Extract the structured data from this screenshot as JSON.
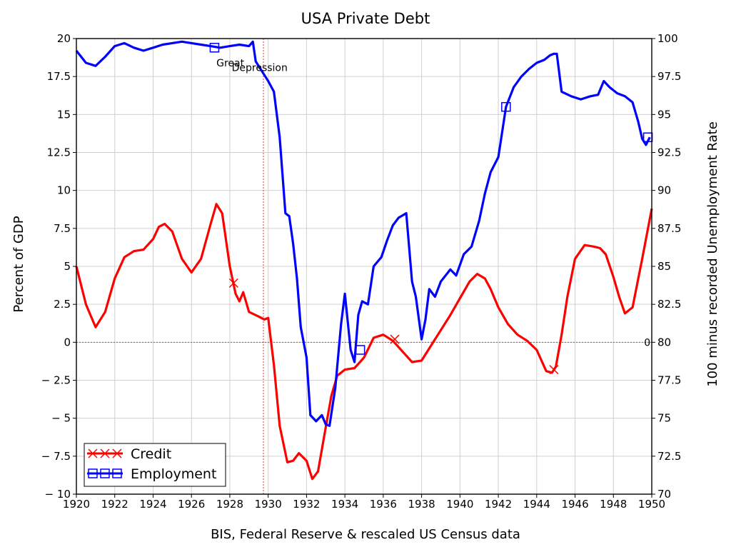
{
  "chart_data": {
    "type": "line",
    "title": "USA Private Debt",
    "xlabel": "BIS, Federal Reserve & rescaled US Census data",
    "ylabel_left": "Percent of GDP",
    "ylabel_right": "100 minus recorded Unemployment Rate",
    "xlim": [
      1920,
      1950
    ],
    "ylim_left": [
      -10,
      20
    ],
    "ylim_right": [
      70,
      100
    ],
    "x_ticks": [
      "1920",
      "1922",
      "1924",
      "1926",
      "1928",
      "1930",
      "1932",
      "1934",
      "1936",
      "1938",
      "1940",
      "1942",
      "1944",
      "1946",
      "1948",
      "1950"
    ],
    "y_left_ticks": [
      "20",
      "17.5",
      "15",
      "12.5",
      "10",
      "7.5",
      "5",
      "2.5",
      "0",
      "− 2.5",
      "− 5",
      "− 7.5",
      "− 10"
    ],
    "y_right_ticks": [
      "100",
      "97.5",
      "95",
      "92.5",
      "90",
      "87.5",
      "85",
      "82.5",
      "80",
      "77.5",
      "75",
      "72.5",
      "70"
    ],
    "grid": true,
    "legend_position": "bottom-left",
    "vline_x": 1929.75,
    "hline_y": 0,
    "annotations": [
      {
        "text": "Great",
        "x": 1927.3,
        "y": 98.4
      },
      {
        "text": "Depression",
        "x": 1928.1,
        "y": 98.1
      },
      {
        "text": "0",
        "x": 1949.6,
        "y": 80
      }
    ],
    "series": [
      {
        "name": "Credit",
        "color": "#ff0000",
        "axis": "left",
        "marker": "x",
        "x": [
          1920.0,
          1920.5,
          1921.0,
          1921.5,
          1922.0,
          1922.5,
          1923.0,
          1923.5,
          1924.0,
          1924.3,
          1924.6,
          1925.0,
          1925.5,
          1926.0,
          1926.5,
          1927.0,
          1927.3,
          1927.6,
          1928.0,
          1928.3,
          1928.5,
          1928.7,
          1929.0,
          1929.5,
          1929.8,
          1930.0,
          1930.3,
          1930.6,
          1931.0,
          1931.3,
          1931.6,
          1932.0,
          1932.3,
          1932.6,
          1933.0,
          1933.3,
          1933.6,
          1934.0,
          1934.5,
          1935.0,
          1935.5,
          1936.0,
          1936.5,
          1937.0,
          1937.5,
          1938.0,
          1938.5,
          1939.0,
          1939.5,
          1940.0,
          1940.5,
          1940.9,
          1941.3,
          1941.6,
          1942.0,
          1942.5,
          1943.0,
          1943.5,
          1944.0,
          1944.5,
          1944.8,
          1945.0,
          1945.3,
          1945.6,
          1946.0,
          1946.5,
          1947.0,
          1947.3,
          1947.6,
          1948.0,
          1948.3,
          1948.6,
          1949.0,
          1949.5,
          1950.0
        ],
        "y": [
          5.0,
          2.5,
          1.0,
          2.0,
          4.2,
          5.6,
          6.0,
          6.1,
          6.8,
          7.6,
          7.8,
          7.3,
          5.5,
          4.6,
          5.5,
          7.8,
          9.1,
          8.5,
          5.0,
          3.2,
          2.7,
          3.3,
          2.0,
          1.7,
          1.5,
          1.6,
          -1.5,
          -5.5,
          -7.9,
          -7.8,
          -7.3,
          -7.8,
          -9.0,
          -8.5,
          -5.6,
          -3.5,
          -2.2,
          -1.8,
          -1.7,
          -1.0,
          0.3,
          0.5,
          0.1,
          -0.6,
          -1.3,
          -1.2,
          -0.2,
          0.8,
          1.8,
          2.9,
          4.0,
          4.5,
          4.2,
          3.5,
          2.3,
          1.2,
          0.5,
          0.1,
          -0.5,
          -1.9,
          -2.0,
          -1.6,
          0.5,
          3.0,
          5.5,
          6.4,
          6.3,
          6.2,
          5.8,
          4.3,
          3.0,
          1.9,
          2.3,
          5.5,
          8.8
        ],
        "markers_x": [
          1928.2,
          1936.6,
          1944.9
        ],
        "markers_y": [
          3.9,
          0.2,
          -1.8
        ]
      },
      {
        "name": "Employment",
        "color": "#0000ff",
        "axis": "right",
        "marker": "square",
        "x": [
          1920.0,
          1920.5,
          1921.0,
          1921.5,
          1922.0,
          1922.5,
          1923.0,
          1923.5,
          1924.0,
          1924.5,
          1925.0,
          1925.5,
          1926.0,
          1926.5,
          1927.0,
          1927.5,
          1928.0,
          1928.5,
          1929.0,
          1929.2,
          1929.35,
          1929.5,
          1929.7,
          1930.0,
          1930.3,
          1930.6,
          1930.9,
          1931.1,
          1931.3,
          1931.5,
          1931.7,
          1932.0,
          1932.2,
          1932.5,
          1932.8,
          1933.0,
          1933.2,
          1933.5,
          1933.8,
          1934.0,
          1934.3,
          1934.5,
          1934.7,
          1934.9,
          1935.2,
          1935.5,
          1935.9,
          1936.2,
          1936.5,
          1936.8,
          1937.2,
          1937.5,
          1937.7,
          1938.0,
          1938.2,
          1938.4,
          1938.7,
          1939.0,
          1939.5,
          1939.8,
          1940.2,
          1940.6,
          1941.0,
          1941.3,
          1941.6,
          1942.0,
          1942.4,
          1942.8,
          1943.2,
          1943.6,
          1944.0,
          1944.4,
          1944.7,
          1944.9,
          1945.05,
          1945.3,
          1945.8,
          1946.3,
          1946.8,
          1947.2,
          1947.5,
          1947.8,
          1948.2,
          1948.6,
          1949.0,
          1949.3,
          1949.5,
          1949.7,
          1949.9
        ],
        "y": [
          99.2,
          98.4,
          98.2,
          98.8,
          99.5,
          99.7,
          99.4,
          99.2,
          99.4,
          99.6,
          99.7,
          99.8,
          99.7,
          99.6,
          99.5,
          99.4,
          99.5,
          99.6,
          99.5,
          99.8,
          98.5,
          98.2,
          97.8,
          97.2,
          96.5,
          93.5,
          88.5,
          88.3,
          86.5,
          84.2,
          81.0,
          79.0,
          75.2,
          74.8,
          75.2,
          74.6,
          74.5,
          77.0,
          81.2,
          83.2,
          79.5,
          78.7,
          81.8,
          82.7,
          82.5,
          85.0,
          85.6,
          86.7,
          87.7,
          88.2,
          88.5,
          84.0,
          83.0,
          80.2,
          81.5,
          83.5,
          83.0,
          84.0,
          84.8,
          84.4,
          85.8,
          86.3,
          88.0,
          89.8,
          91.2,
          92.2,
          95.5,
          96.8,
          97.5,
          98.0,
          98.4,
          98.6,
          98.9,
          99.0,
          99.0,
          96.5,
          96.2,
          96.0,
          96.2,
          96.3,
          97.2,
          96.8,
          96.4,
          96.2,
          95.8,
          94.5,
          93.4,
          93.0,
          93.5
        ],
        "markers_x": [
          1927.2,
          1934.8,
          1942.4,
          1949.8
        ],
        "markers_y": [
          99.4,
          79.5,
          95.5,
          93.5
        ]
      }
    ]
  }
}
